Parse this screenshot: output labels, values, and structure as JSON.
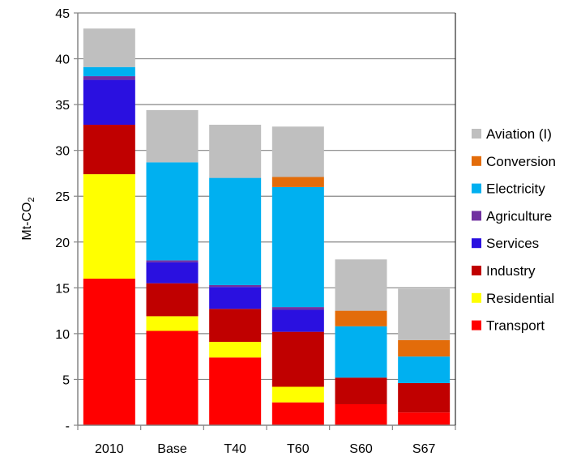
{
  "chart_data": {
    "type": "bar",
    "stacked": true,
    "ylabel": "Mt-CO",
    "ylabel_subscript": "2",
    "ylim": [
      0,
      45
    ],
    "yticks": [
      0,
      5,
      10,
      15,
      20,
      25,
      30,
      35,
      40,
      45
    ],
    "ytick_labels": [
      "-",
      "5",
      "10",
      "15",
      "20",
      "25",
      "30",
      "35",
      "40",
      "45"
    ],
    "grid": true,
    "legend_position": "right",
    "categories": [
      "2010",
      "Base",
      "T40",
      "T60",
      "S60",
      "S67"
    ],
    "series": [
      {
        "name": "Transport",
        "color": "#ff0000",
        "values": [
          16.0,
          10.3,
          7.4,
          2.5,
          2.3,
          1.4
        ]
      },
      {
        "name": "Residential",
        "color": "#ffff00",
        "values": [
          11.4,
          1.6,
          1.7,
          1.7,
          0,
          0
        ]
      },
      {
        "name": "Industry",
        "color": "#c00000",
        "values": [
          5.4,
          3.6,
          3.6,
          6.0,
          2.9,
          3.2
        ]
      },
      {
        "name": "Services",
        "color": "#2a10e0",
        "values": [
          4.9,
          2.3,
          2.4,
          2.4,
          0,
          0
        ]
      },
      {
        "name": "Agriculture",
        "color": "#7030a0",
        "values": [
          0.4,
          0.2,
          0.2,
          0.3,
          0,
          0
        ]
      },
      {
        "name": "Electricity",
        "color": "#00b0f0",
        "values": [
          1.0,
          10.7,
          11.7,
          13.1,
          5.6,
          2.9
        ]
      },
      {
        "name": "Conversion",
        "color": "#e36c0a",
        "values": [
          0,
          0,
          0,
          1.1,
          1.7,
          1.8
        ]
      },
      {
        "name": "Aviation (I)",
        "color": "#bfbfbf",
        "values": [
          4.2,
          5.7,
          5.8,
          5.5,
          5.6,
          5.6
        ]
      }
    ]
  }
}
